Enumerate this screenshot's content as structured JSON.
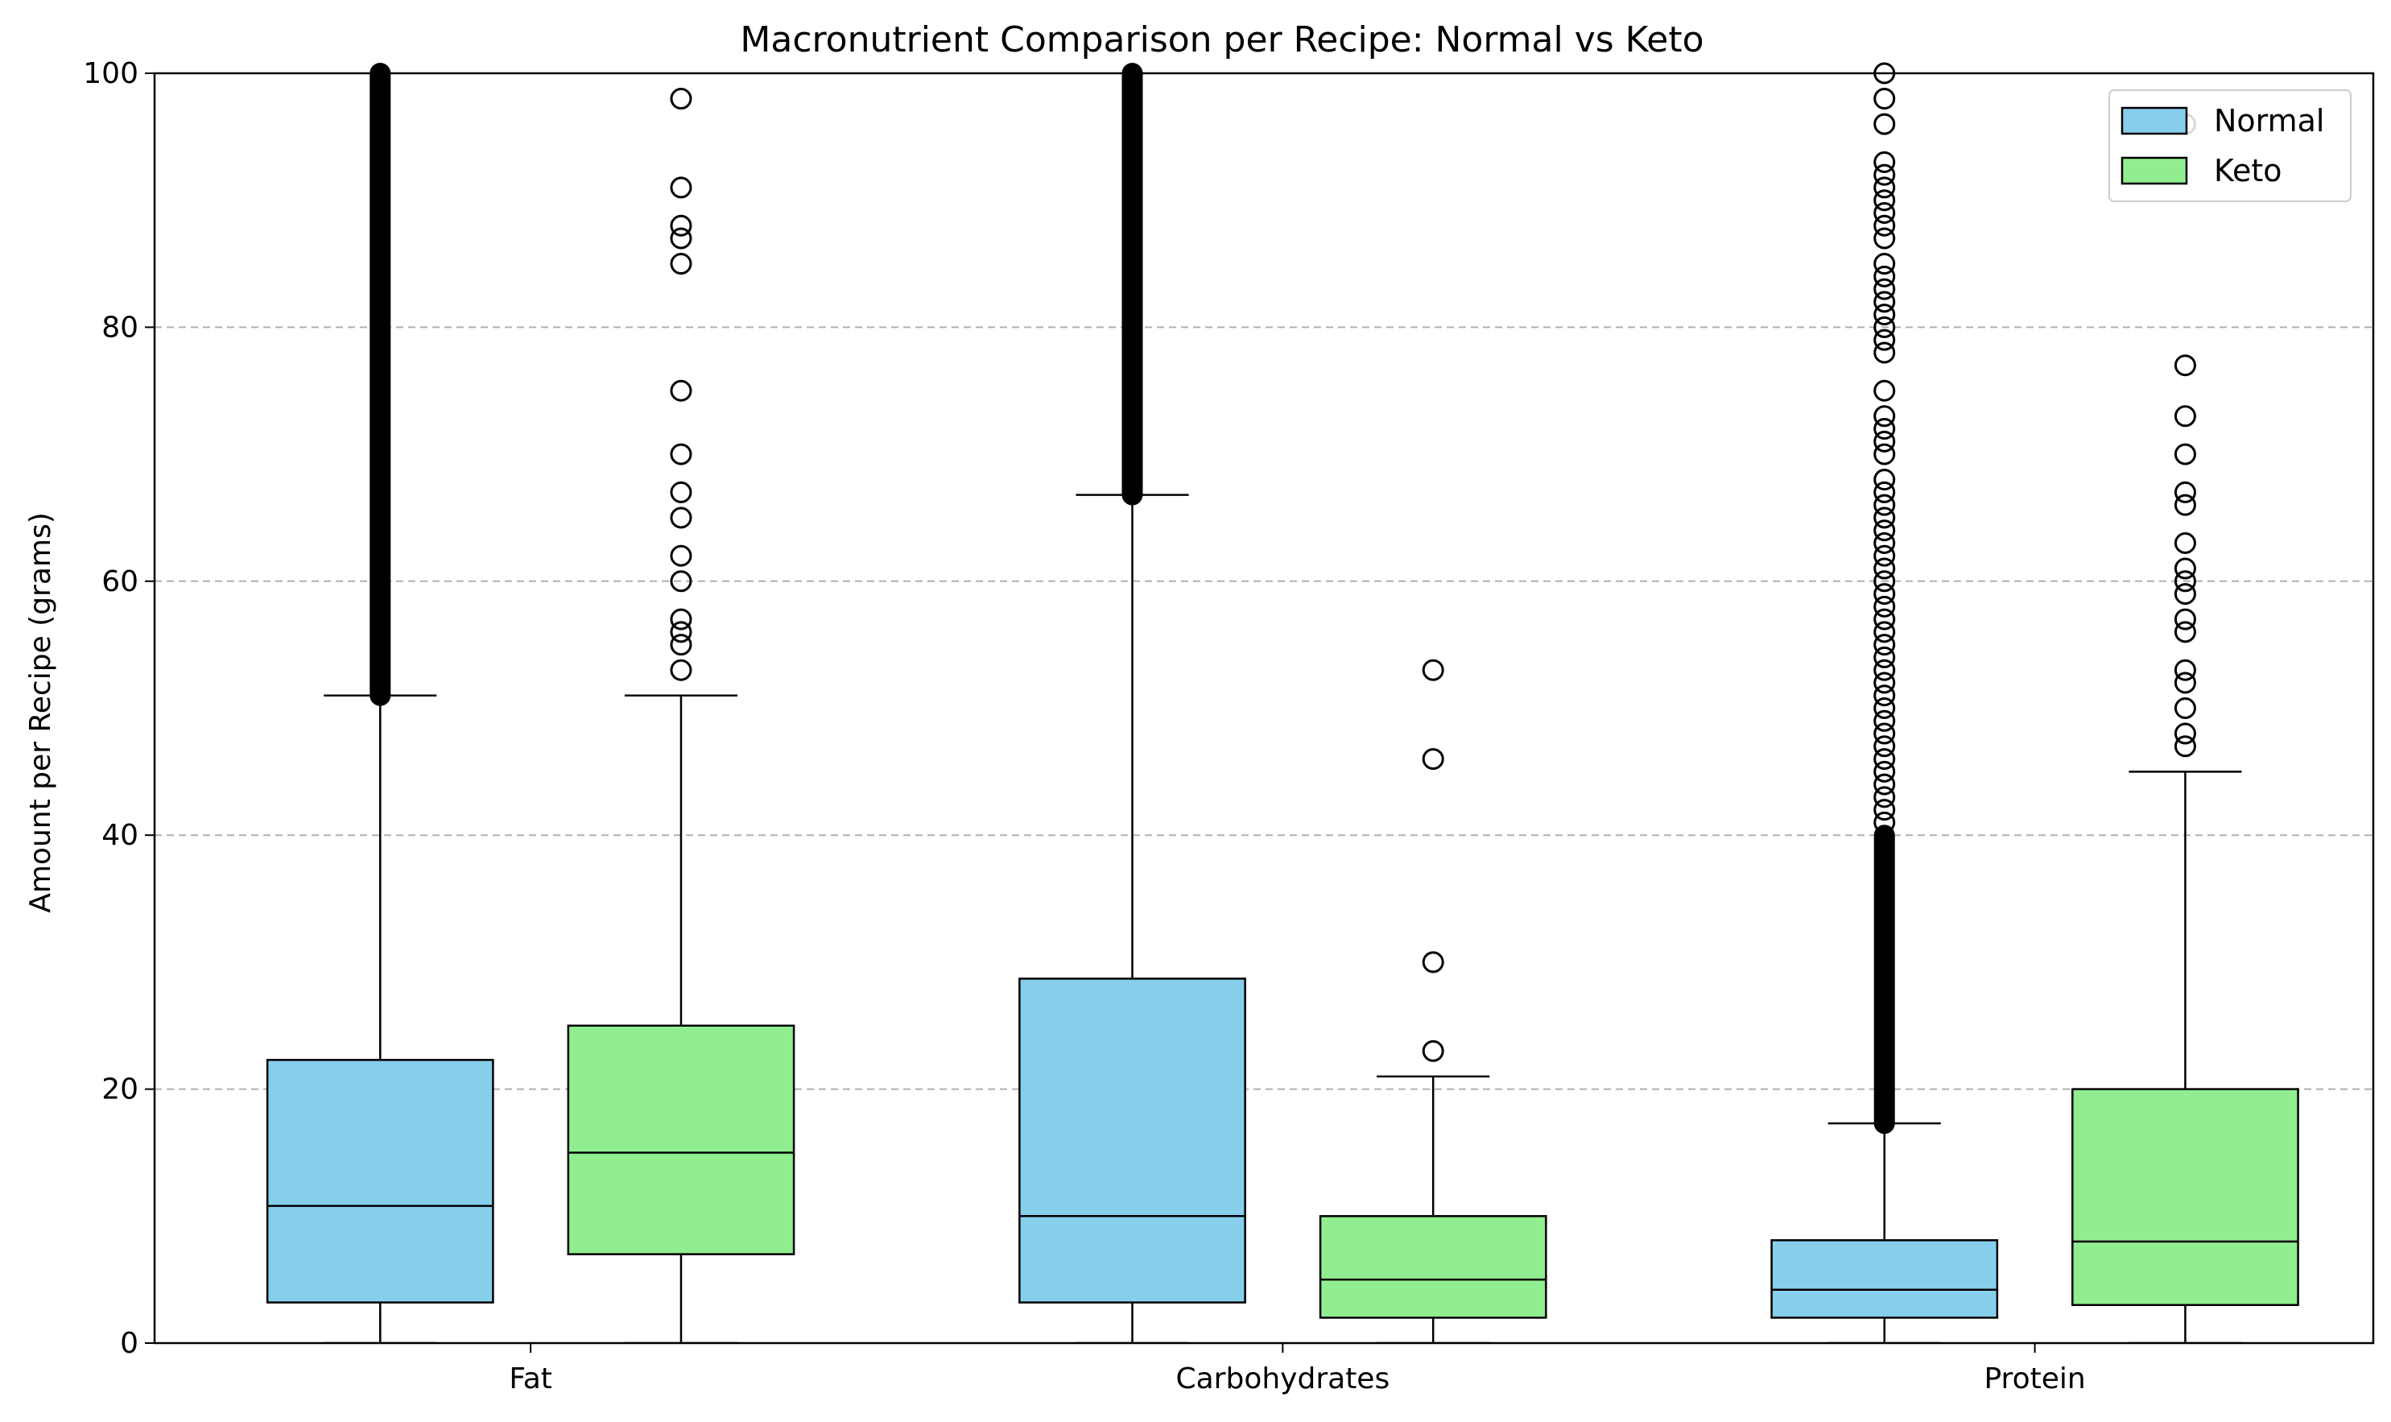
{
  "chart_data": {
    "type": "box",
    "title": "Macronutrient Comparison per Recipe: Normal vs Keto",
    "xlabel": "",
    "ylabel": "Amount per Recipe (grams)",
    "ylim": [
      0,
      100
    ],
    "yticks": [
      0,
      20,
      40,
      60,
      80,
      100
    ],
    "grid": "y-dashed",
    "legend_position": "top-right",
    "categories": [
      "Fat",
      "Carbohydrates",
      "Protein"
    ],
    "series": [
      {
        "name": "Normal",
        "color": "#87CEEB",
        "boxes": [
          {
            "whisker_low": 0,
            "q1": 3.2,
            "median": 10.8,
            "q3": 22.3,
            "whisker_high": 51.0,
            "outliers_dense": [
              51.0,
              100.0
            ],
            "outliers": []
          },
          {
            "whisker_low": 0,
            "q1": 3.2,
            "median": 10.0,
            "q3": 28.7,
            "whisker_high": 66.8,
            "outliers_dense": [
              66.8,
              100.0
            ],
            "outliers": []
          },
          {
            "whisker_low": 0,
            "q1": 2.0,
            "median": 4.2,
            "q3": 8.1,
            "whisker_high": 17.3,
            "outliers_dense": [
              17.3,
              40.0
            ],
            "outliers": [
              41,
              42,
              43,
              44,
              45,
              46,
              47,
              48,
              49,
              50,
              51,
              52,
              53,
              54,
              55,
              56,
              57,
              58,
              59,
              60,
              61,
              62,
              63,
              64,
              65,
              66,
              67,
              68,
              70,
              71,
              72,
              73,
              75,
              78,
              79,
              80,
              81,
              82,
              83,
              84,
              85,
              87,
              88,
              89,
              90,
              91,
              92,
              93,
              96,
              98,
              100
            ]
          }
        ]
      },
      {
        "name": "Keto",
        "color": "#90EE90",
        "boxes": [
          {
            "whisker_low": 0,
            "q1": 7.0,
            "median": 15.0,
            "q3": 25.0,
            "whisker_high": 51.0,
            "outliers_dense": null,
            "outliers": [
              53,
              55,
              56,
              57,
              60,
              62,
              65,
              67,
              70,
              75,
              85,
              87,
              88,
              91,
              98
            ]
          },
          {
            "whisker_low": 0,
            "q1": 2.0,
            "median": 5.0,
            "q3": 10.0,
            "whisker_high": 21.0,
            "outliers_dense": null,
            "outliers": [
              23,
              30,
              46,
              53
            ]
          },
          {
            "whisker_low": 0,
            "q1": 3.0,
            "median": 8.0,
            "q3": 20.0,
            "whisker_high": 45.0,
            "outliers_dense": null,
            "outliers": [
              47,
              48,
              50,
              52,
              53,
              56,
              57,
              59,
              60,
              61,
              63,
              66,
              67,
              70,
              73,
              77,
              96
            ]
          }
        ]
      }
    ]
  }
}
